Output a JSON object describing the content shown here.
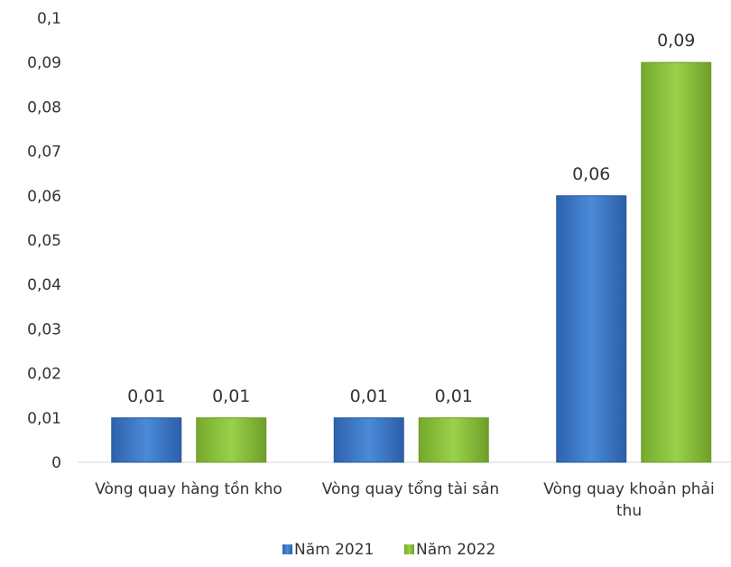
{
  "chart_data": {
    "type": "bar",
    "title": "",
    "xlabel": "",
    "ylabel": "",
    "categories": [
      "Vòng quay hàng tồn kho",
      "Vòng quay tổng tài sản",
      "Vòng quay khoản phải thu"
    ],
    "series": [
      {
        "name": "Năm 2021",
        "values": [
          0.01,
          0.01,
          0.06
        ],
        "color": "#3b79c9",
        "labels": [
          "0,01",
          "0,01",
          "0,06"
        ]
      },
      {
        "name": "Năm 2022",
        "values": [
          0.01,
          0.01,
          0.09
        ],
        "color": "#8cc23c",
        "labels": [
          "0,01",
          "0,01",
          "0,09"
        ]
      }
    ],
    "ylim": [
      0,
      0.1
    ],
    "yticks": [
      0,
      0.01,
      0.02,
      0.03,
      0.04,
      0.05,
      0.06,
      0.07,
      0.08,
      0.09,
      0.1
    ],
    "ytick_labels": [
      "0",
      "0,01",
      "0,02",
      "0,03",
      "0,04",
      "0,05",
      "0,06",
      "0,07",
      "0,08",
      "0,09",
      "0,1"
    ],
    "grid": false,
    "legend_position": "bottom-center"
  }
}
